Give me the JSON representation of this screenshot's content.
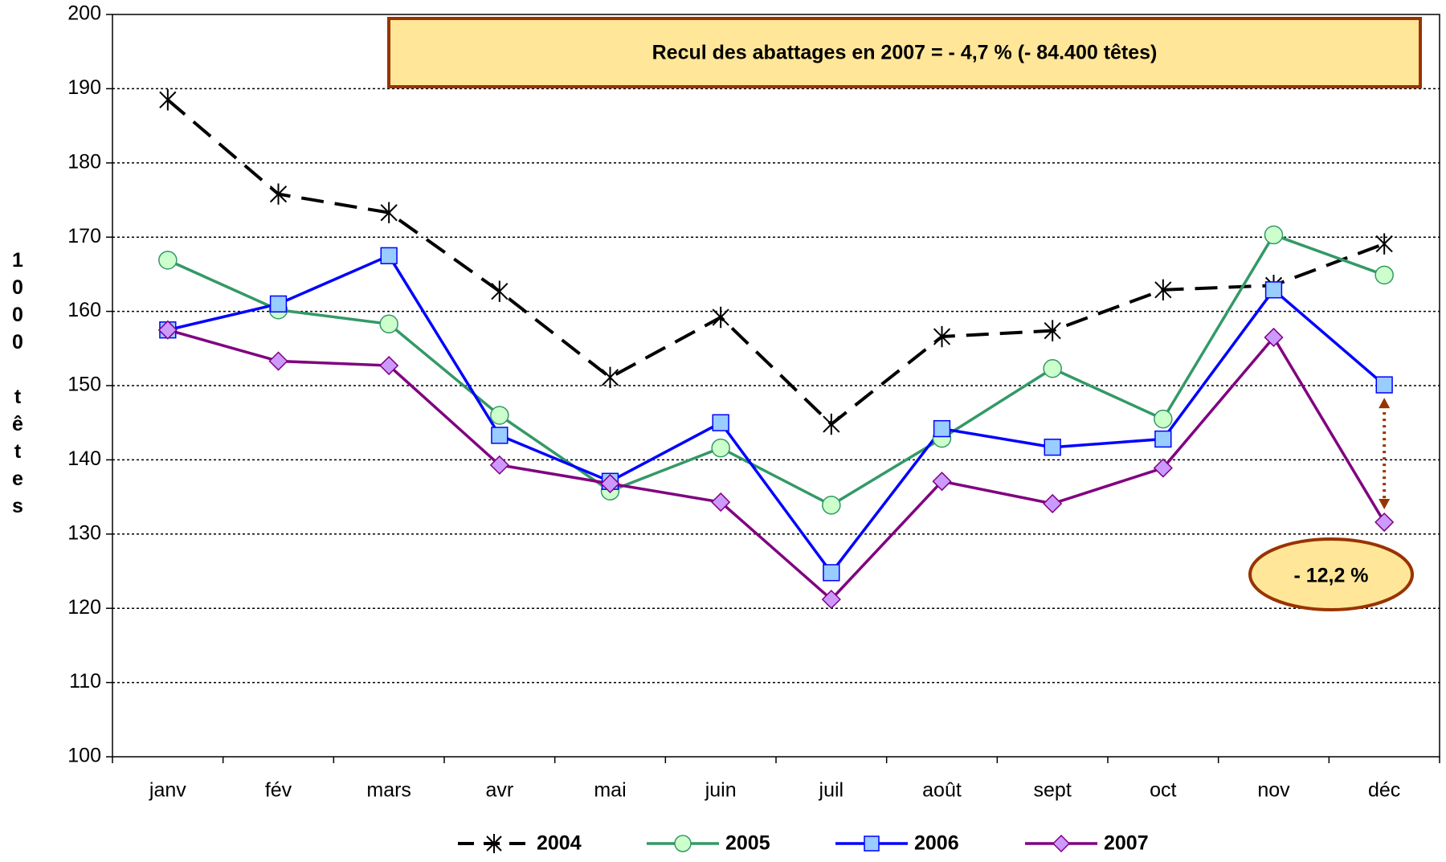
{
  "chart_data": {
    "type": "line",
    "annotations": [
      "Recul des abattages en 2007 = - 4,7 % (- 84.400 têtes)",
      "- 12,2 %"
    ],
    "y_label": "1000 têtes",
    "categories": [
      "janv",
      "fév",
      "mars",
      "avr",
      "mai",
      "juin",
      "juil",
      "août",
      "sept",
      "oct",
      "nov",
      "déc"
    ],
    "series": [
      {
        "name": "2004",
        "color": "#000000",
        "marker": "asterisk",
        "marker_fill": "none",
        "dash": true,
        "values": [
          188.5,
          175.8,
          173.3,
          162.7,
          151.1,
          159.2,
          144.8,
          156.6,
          157.4,
          162.9,
          163.5,
          169.1
        ]
      },
      {
        "name": "2005",
        "color": "#339966",
        "marker": "circle",
        "marker_fill": "#ccffcc",
        "dash": false,
        "values": [
          166.9,
          160.2,
          158.3,
          146.0,
          135.8,
          141.6,
          133.9,
          142.9,
          152.3,
          145.5,
          170.3,
          164.9
        ]
      },
      {
        "name": "2006",
        "color": "#0000ff",
        "marker": "square",
        "marker_fill": "#99ccff",
        "dash": false,
        "values": [
          157.5,
          161.0,
          167.5,
          143.3,
          137.1,
          145.0,
          124.8,
          144.2,
          141.7,
          142.8,
          162.9,
          150.1
        ]
      },
      {
        "name": "2007",
        "color": "#800080",
        "marker": "diamond",
        "marker_fill": "#cc99ff",
        "dash": false,
        "values": [
          157.5,
          153.3,
          152.7,
          139.3,
          136.8,
          134.3,
          121.2,
          137.1,
          134.1,
          138.9,
          156.5,
          131.6
        ]
      }
    ],
    "ylim": [
      100,
      200
    ],
    "yticks": [
      100,
      110,
      120,
      130,
      140,
      150,
      160,
      170,
      180,
      190,
      200
    ],
    "grid": true,
    "legend": "bottom"
  }
}
